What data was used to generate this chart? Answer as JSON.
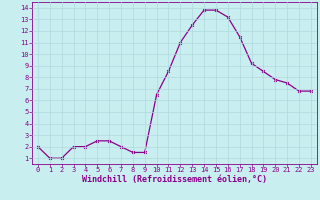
{
  "x": [
    0,
    1,
    2,
    3,
    4,
    5,
    6,
    7,
    8,
    9,
    10,
    11,
    12,
    13,
    14,
    15,
    16,
    17,
    18,
    19,
    20,
    21,
    22,
    23
  ],
  "y": [
    2,
    1,
    1,
    2,
    2,
    2.5,
    2.5,
    2,
    1.5,
    1.5,
    6.5,
    8.5,
    11,
    12.5,
    13.8,
    13.8,
    13.2,
    11.5,
    9.2,
    8.5,
    7.8,
    7.5,
    6.8,
    6.8
  ],
  "line_color": "#8B008B",
  "marker_color": "#8B008B",
  "bg_color": "#c8eef0",
  "grid_color": "#b0d8dc",
  "xlabel": "Windchill (Refroidissement éolien,°C)",
  "xlim": [
    -0.5,
    23.5
  ],
  "ylim": [
    0.5,
    14.5
  ],
  "yticks": [
    1,
    2,
    3,
    4,
    5,
    6,
    7,
    8,
    9,
    10,
    11,
    12,
    13,
    14
  ],
  "xticks": [
    0,
    1,
    2,
    3,
    4,
    5,
    6,
    7,
    8,
    9,
    10,
    11,
    12,
    13,
    14,
    15,
    16,
    17,
    18,
    19,
    20,
    21,
    22,
    23
  ],
  "tick_fontsize": 5.0,
  "label_fontsize": 6.0,
  "marker_size": 2.0,
  "line_width": 0.9,
  "label_color": "#8B008B",
  "axis_color": "#8B008B",
  "grid_linewidth": 0.5
}
